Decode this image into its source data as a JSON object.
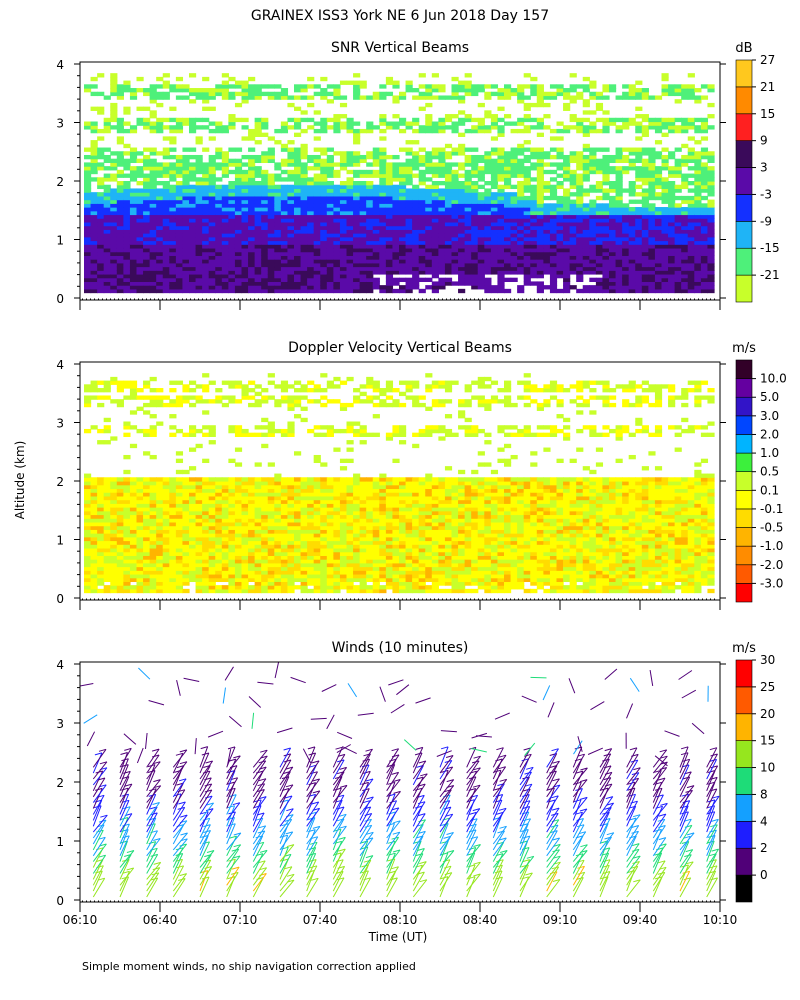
{
  "header": {
    "title": "GRAINEX ISS3 York NE    6 Jun 2018 Day 157"
  },
  "y_axis_label": "Altitude (km)",
  "x_axis_label": "Time (UT)",
  "footnote": "Simple moment winds, no ship navigation correction applied",
  "x_ticks": [
    "06:10",
    "06:40",
    "07:10",
    "07:40",
    "08:10",
    "08:40",
    "09:10",
    "09:40",
    "10:10"
  ],
  "chart_data": [
    {
      "type": "heatmap",
      "title": "SNR Vertical Beams",
      "ylabel": "Altitude (km)",
      "xlabel": "",
      "ylim": [
        0,
        4
      ],
      "y_ticks": [
        "0",
        "1",
        "2",
        "3",
        "4"
      ],
      "xlim": [
        "06:10",
        "10:10"
      ],
      "legend": {
        "unit": "dB",
        "placement": "right",
        "colors": [
          "#c8ff2a",
          "#4ef07a",
          "#1fb4f6",
          "#1430ff",
          "#5a0aa8",
          "#3a0a5a",
          "#ff2020",
          "#ff8a00",
          "#ffc81e"
        ],
        "labels": [
          "-21",
          "-15",
          "-9",
          "-3",
          "3",
          "9",
          "15",
          "21",
          "27"
        ]
      },
      "layers": [
        {
          "from_km": 0.15,
          "to_km": 1.0,
          "value_db": 6
        },
        {
          "from_km": 1.0,
          "to_km": 1.5,
          "value_db": 2
        },
        {
          "from_km": 1.5,
          "to_km": 1.75,
          "value_db": -4
        },
        {
          "from_km": 1.75,
          "to_km": 2.0,
          "value_db": -10
        },
        {
          "from_km": 2.0,
          "to_km": 2.4,
          "value_db": -18
        },
        {
          "from_km": 2.4,
          "to_km": 3.8,
          "value_db": -20
        }
      ]
    },
    {
      "type": "heatmap",
      "title": "Doppler Velocity Vertical Beams",
      "ylabel": "Altitude (km)",
      "xlabel": "",
      "ylim": [
        0,
        4
      ],
      "y_ticks": [
        "0",
        "1",
        "2",
        "3",
        "4"
      ],
      "xlim": [
        "06:10",
        "10:10"
      ],
      "legend": {
        "unit": "m/s",
        "placement": "right",
        "colors": [
          "#ff0000",
          "#ff5a00",
          "#ff8c00",
          "#ffb400",
          "#ffdc00",
          "#ffff00",
          "#c8ff2a",
          "#3cf03c",
          "#00b4ff",
          "#0046ff",
          "#3214c8",
          "#6400a0",
          "#320028"
        ],
        "labels": [
          "-3.0",
          "-2.0",
          "-1.0",
          "-0.5",
          "-0.1",
          "0.1",
          "0.5",
          "1.0",
          "2.0",
          "3.0",
          "5.0",
          "10.0"
        ]
      },
      "layers": [
        {
          "from_km": 0.15,
          "to_km": 2.1,
          "value_ms": -0.1
        },
        {
          "from_km": 2.1,
          "to_km": 3.8,
          "value_ms": 0.3
        }
      ]
    },
    {
      "type": "scatter",
      "title": "Winds (10 minutes)",
      "ylabel": "Altitude (km)",
      "xlabel": "Time (UT)",
      "ylim": [
        0,
        4
      ],
      "y_ticks": [
        "0",
        "1",
        "2",
        "3",
        "4"
      ],
      "xlim": [
        "06:10",
        "10:10"
      ],
      "x_ticks": [
        "06:10",
        "06:40",
        "07:10",
        "07:40",
        "08:10",
        "08:40",
        "09:10",
        "09:40",
        "10:10"
      ],
      "legend": {
        "unit": "m/s",
        "placement": "right",
        "colors": [
          "#000000",
          "#500078",
          "#1e1eff",
          "#14a0ff",
          "#1edc78",
          "#96e61e",
          "#ffb400",
          "#ff5a00",
          "#ff0000"
        ],
        "labels": [
          "0",
          "2",
          "4",
          "8",
          "10",
          "15",
          "20",
          "25",
          "30"
        ]
      },
      "profiles_every_minutes": 10,
      "profile_levels_km": {
        "from": 0.05,
        "to": 2.3,
        "step": 0.1
      }
    }
  ]
}
